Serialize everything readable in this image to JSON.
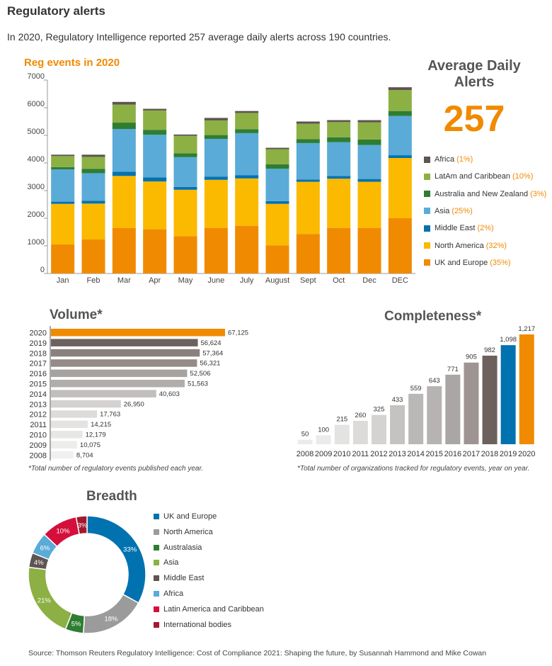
{
  "header": {
    "title": "Regulatory alerts",
    "intro": "In 2020, Regulatory Intelligence reported 257 average daily alerts across 190 countries."
  },
  "average_daily_alerts": {
    "label": "Average Daily Alerts",
    "value": "257"
  },
  "chart_data": [
    {
      "id": "reg-events",
      "type": "bar",
      "stacked": true,
      "title": "Reg events in 2020",
      "categories": [
        "Jan",
        "Feb",
        "Mar",
        "Apr",
        "May",
        "June",
        "July",
        "August",
        "Sept",
        "Oct",
        "Dec",
        "DEC"
      ],
      "ylim": [
        0,
        7000
      ],
      "yticks": [
        0,
        1000,
        2000,
        3000,
        4000,
        5000,
        6000,
        7000
      ],
      "series": [
        {
          "name": "UK and Europe",
          "share": "(35%)",
          "color": "#f08a00",
          "values": [
            1050,
            1230,
            1650,
            1600,
            1350,
            1650,
            1720,
            1020,
            1430,
            1650,
            1650,
            2000
          ]
        },
        {
          "name": "North America",
          "share": "(32%)",
          "color": "#fbb900",
          "values": [
            1470,
            1300,
            1880,
            1730,
            1680,
            1740,
            1720,
            1500,
            1890,
            1780,
            1670,
            2180
          ]
        },
        {
          "name": "Middle East",
          "share": "(2%)",
          "color": "#0072b0",
          "values": [
            80,
            100,
            150,
            150,
            100,
            110,
            120,
            100,
            80,
            100,
            100,
            100
          ]
        },
        {
          "name": "Asia",
          "share": "(25%)",
          "color": "#5aabd8",
          "values": [
            1170,
            1000,
            1550,
            1540,
            1080,
            1370,
            1520,
            1170,
            1320,
            1220,
            1230,
            1420
          ]
        },
        {
          "name": "Australia and New Zealand",
          "share": "(3%)",
          "color": "#2e7d32",
          "values": [
            80,
            160,
            230,
            180,
            140,
            140,
            140,
            160,
            140,
            180,
            200,
            180
          ]
        },
        {
          "name": "LatAm and Caribbean",
          "share": "(10%)",
          "color": "#8cb044",
          "values": [
            400,
            430,
            650,
            700,
            630,
            530,
            590,
            550,
            560,
            550,
            620,
            760
          ]
        },
        {
          "name": "Africa",
          "share": "(1%)",
          "color": "#5e5451",
          "values": [
            50,
            80,
            100,
            60,
            50,
            90,
            70,
            50,
            80,
            70,
            80,
            100
          ]
        }
      ]
    },
    {
      "id": "volume",
      "type": "bar",
      "orientation": "horizontal",
      "title": "Volume*",
      "categories": [
        "2020",
        "2019",
        "2018",
        "2017",
        "2016",
        "2015",
        "2014",
        "2013",
        "2012",
        "2011",
        "2010",
        "2009",
        "2008"
      ],
      "values": [
        67125,
        56624,
        57364,
        56321,
        52506,
        51563,
        40603,
        26950,
        17763,
        14215,
        12179,
        10075,
        8704
      ],
      "labels": [
        "67,125",
        "56,624",
        "57,364",
        "56,321",
        "52,506",
        "51,563",
        "40,603",
        "26,950",
        "17,763",
        "14,215",
        "12,179",
        "10,075",
        "8,704"
      ],
      "colors": [
        "#f08a00",
        "#6d615e",
        "#8a807d",
        "#948b88",
        "#a6a2a0",
        "#b1adab",
        "#c1bebc",
        "#d4d2d1",
        "#dedcdb",
        "#e4e3e2",
        "#e8e7e6",
        "#ededec",
        "#f1f0f0"
      ],
      "note": "*Total number of regulatory events published each year."
    },
    {
      "id": "completeness",
      "type": "bar",
      "title": "Completeness*",
      "categories": [
        "2008",
        "2009",
        "2010",
        "2011",
        "2012",
        "2013",
        "2014",
        "2015",
        "2016",
        "2017",
        "2018",
        "2019",
        "2020"
      ],
      "values": [
        50,
        100,
        215,
        260,
        325,
        433,
        559,
        643,
        771,
        905,
        982,
        1098,
        1217
      ],
      "labels": [
        "50",
        "100",
        "215",
        "260",
        "325",
        "433",
        "559",
        "643",
        "771",
        "905",
        "982",
        "1,098",
        "1,217"
      ],
      "colors": [
        "#ebebea",
        "#ebebea",
        "#e3e3e2",
        "#dcdbda",
        "#d4d3d2",
        "#c5c3c2",
        "#bab8b7",
        "#b6b3b2",
        "#aaa6a5",
        "#9e9593",
        "#6d615e",
        "#0072b0",
        "#f08a00"
      ],
      "note": "*Total number of organizations tracked for regulatory events, year on year."
    },
    {
      "id": "breadth",
      "type": "pie",
      "donut": true,
      "title": "Breadth",
      "slices": [
        {
          "name": "UK and Europe",
          "value": 33,
          "label": "33%",
          "color": "#0072b0"
        },
        {
          "name": "North America",
          "value": 18,
          "label": "18%",
          "color": "#9b9b9b"
        },
        {
          "name": "Australasia",
          "value": 5,
          "label": "5%",
          "color": "#2e7d32"
        },
        {
          "name": "Asia",
          "value": 21,
          "label": "21%",
          "color": "#8cb044"
        },
        {
          "name": "Middle East",
          "value": 4,
          "label": "4%",
          "color": "#5e5451"
        },
        {
          "name": "Africa",
          "value": 6,
          "label": "6%",
          "color": "#5aabd8"
        },
        {
          "name": "Latin America and Caribbean",
          "value": 10,
          "label": "10%",
          "color": "#d50f3c"
        },
        {
          "name": "International bodies",
          "value": 3,
          "label": "3%",
          "color": "#a3182e"
        }
      ]
    }
  ],
  "footer": {
    "source": "Source: Thomson Reuters Regulatory Intelligence: Cost of Compliance 2021: Shaping the future, by Susannah Hammond and Mike Cowan"
  }
}
